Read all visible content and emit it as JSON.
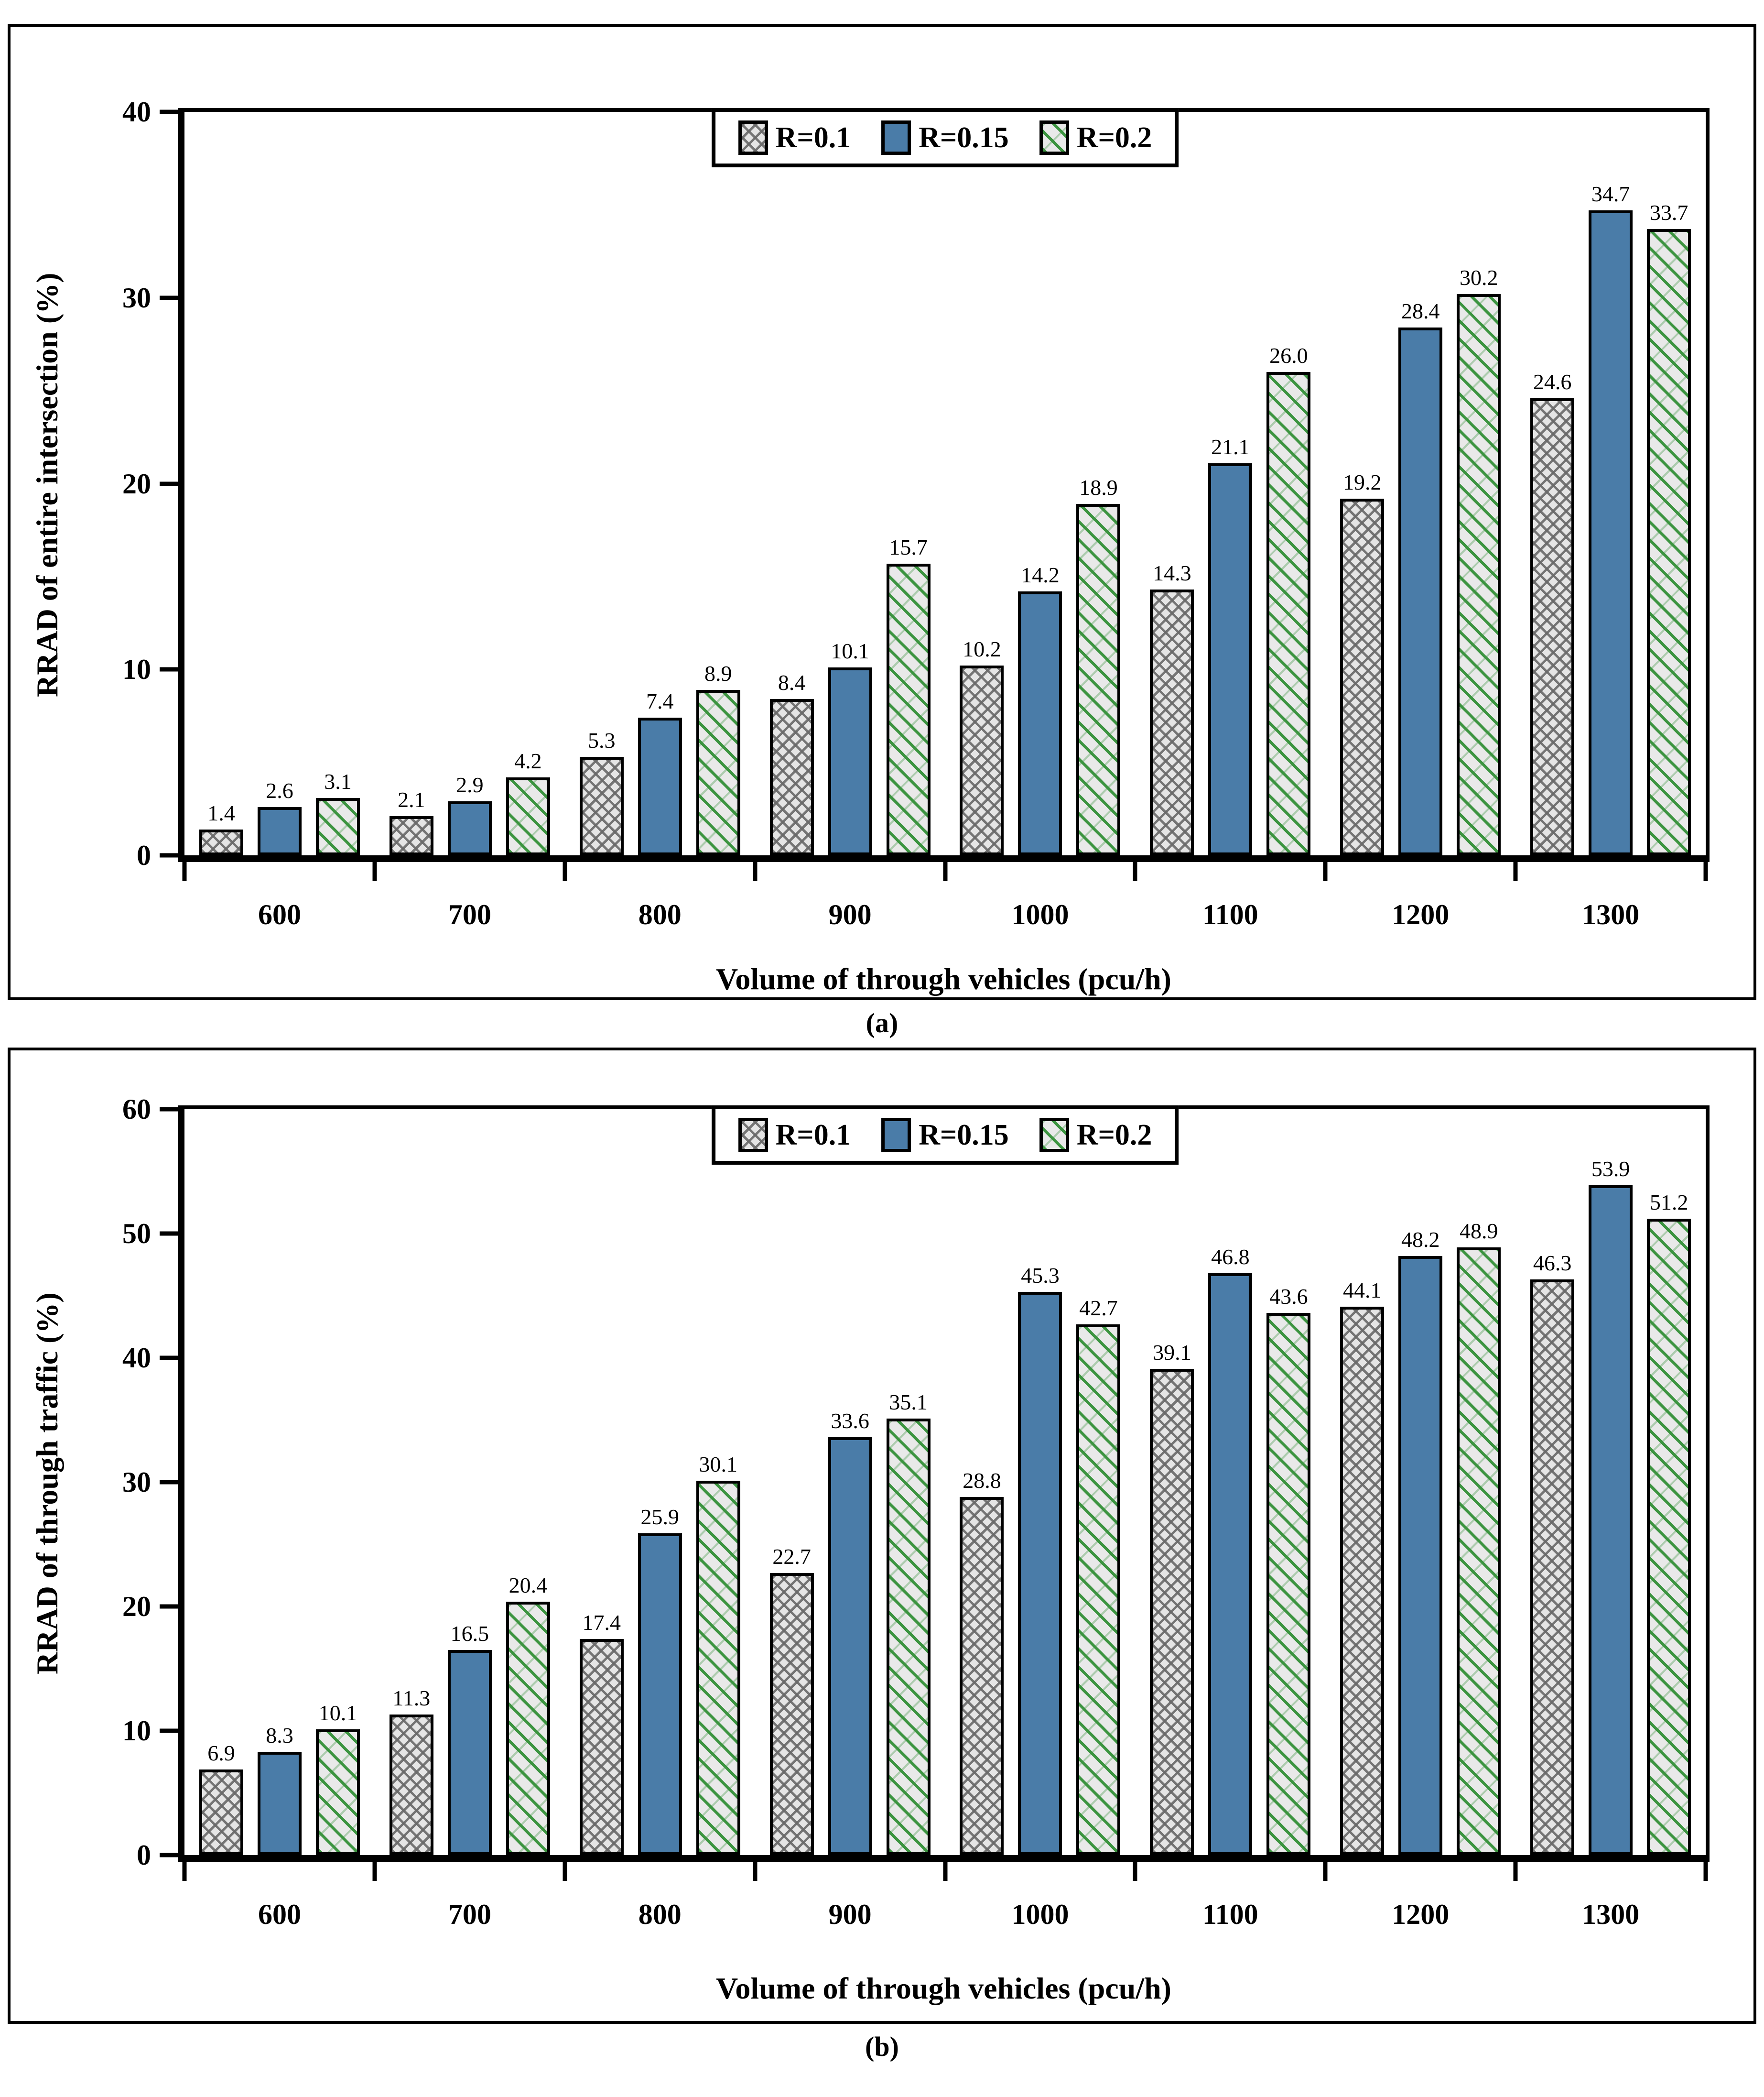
{
  "colors": {
    "bar_blue": "#4a7ca8",
    "hatch_green": "#3c9440",
    "pattern_gray": "#6e6e6e",
    "bar_base": "#e5e5e5",
    "axis_black": "#000000"
  },
  "chart_data": [
    {
      "type": "bar",
      "caption": "(a)",
      "title": "",
      "xlabel": "Volume of through vehicles (pcu/h)",
      "ylabel": "RRAD of entire intersection (%)",
      "ylim": [
        0,
        40
      ],
      "ystep": 10,
      "yticks": [
        "0",
        "10",
        "20",
        "30",
        "40"
      ],
      "grid": false,
      "legend_position": "top-center",
      "categories": [
        "600",
        "700",
        "800",
        "900",
        "1000",
        "1100",
        "1200",
        "1300"
      ],
      "series": [
        {
          "name": "R=0.1",
          "values": [
            1.4,
            2.1,
            5.3,
            8.4,
            10.2,
            14.3,
            19.2,
            24.6
          ]
        },
        {
          "name": "R=0.15",
          "values": [
            2.6,
            2.9,
            7.4,
            10.1,
            14.2,
            21.1,
            28.4,
            34.7
          ]
        },
        {
          "name": "R=0.2",
          "values": [
            3.1,
            4.2,
            8.9,
            15.7,
            18.9,
            26.0,
            30.2,
            33.7
          ]
        }
      ]
    },
    {
      "type": "bar",
      "caption": "(b)",
      "title": "",
      "xlabel": "Volume of through vehicles (pcu/h)",
      "ylabel": "RRAD of through traffic (%)",
      "ylim": [
        0,
        60
      ],
      "ystep": 10,
      "yticks": [
        "0",
        "10",
        "20",
        "30",
        "40",
        "50",
        "60"
      ],
      "grid": false,
      "legend_position": "top-center",
      "categories": [
        "600",
        "700",
        "800",
        "900",
        "1000",
        "1100",
        "1200",
        "1300"
      ],
      "series": [
        {
          "name": "R=0.1",
          "values": [
            6.9,
            11.3,
            17.4,
            22.7,
            28.8,
            39.1,
            44.1,
            46.3
          ]
        },
        {
          "name": "R=0.15",
          "values": [
            8.3,
            16.5,
            25.9,
            33.6,
            45.3,
            46.8,
            48.2,
            53.9
          ]
        },
        {
          "name": "R=0.2",
          "values": [
            10.1,
            20.4,
            30.1,
            35.1,
            42.7,
            43.6,
            48.9,
            51.2
          ]
        }
      ]
    }
  ]
}
